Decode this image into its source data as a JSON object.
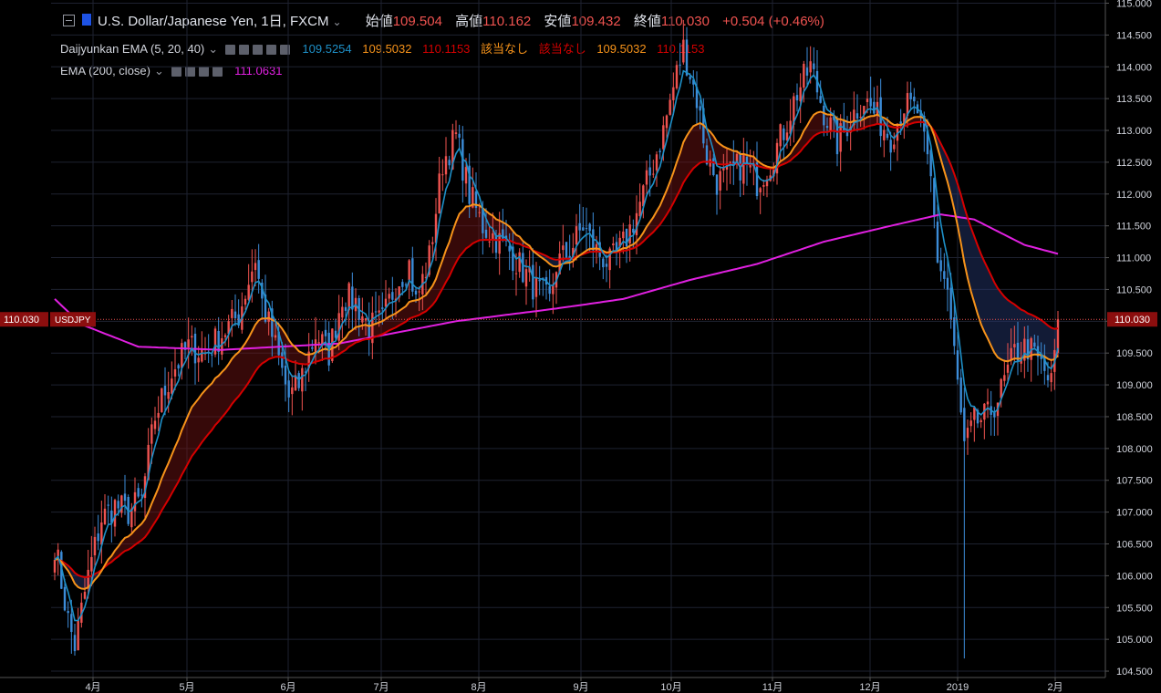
{
  "header": {
    "symbol": "U.S. Dollar/Japanese Yen, 1日, FXCM",
    "chevron": "⌄",
    "open_label": "始値",
    "open_value": "109.504",
    "high_label": "高値",
    "high_value": "110.162",
    "low_label": "安値",
    "low_value": "109.432",
    "close_label": "終値",
    "close_value": "110.030",
    "change": "+0.504 (+0.46%)"
  },
  "indicator1": {
    "name": "Daijyunkan EMA (5, 20, 40)",
    "v1": "109.5254",
    "v2": "109.5032",
    "v3": "110.1153",
    "v4": "該当なし",
    "v5": "該当なし",
    "v6": "109.5032",
    "v7": "110.1153"
  },
  "indicator2": {
    "name": "EMA (200, close)",
    "v1": "111.0631"
  },
  "price_label": {
    "value": "110.030",
    "symbol": "USDJPY"
  },
  "colors": {
    "up": "#ef5350",
    "down": "#3c8cd8",
    "ema5": "#1e90c8",
    "ema20": "#f7931a",
    "ema40": "#d50000",
    "ema200": "#e020e0",
    "grid": "#1e2230",
    "text": "#d1d4dc"
  },
  "chart_data": {
    "type": "line",
    "ylim": [
      104.4,
      115.05
    ],
    "y_ticks": [
      "115.000",
      "114.500",
      "114.000",
      "113.500",
      "113.000",
      "112.500",
      "112.000",
      "111.500",
      "111.000",
      "110.500",
      "110.000",
      "109.500",
      "109.000",
      "108.500",
      "108.000",
      "107.500",
      "107.000",
      "106.500",
      "106.000",
      "105.500",
      "105.000",
      "104.500"
    ],
    "x_ticks": [
      "4月",
      "5月",
      "6月",
      "7月",
      "8月",
      "9月",
      "10月",
      "11月",
      "12月",
      "2019",
      "2月"
    ],
    "close_anchors": [
      [
        0,
        106.5
      ],
      [
        4,
        105.3
      ],
      [
        6,
        104.9
      ],
      [
        10,
        106.0
      ],
      [
        14,
        106.9
      ],
      [
        18,
        107.1
      ],
      [
        22,
        107.0
      ],
      [
        26,
        107.2
      ],
      [
        30,
        108.5
      ],
      [
        35,
        109.2
      ],
      [
        40,
        109.6
      ],
      [
        45,
        109.5
      ],
      [
        50,
        109.8
      ],
      [
        55,
        110.1
      ],
      [
        60,
        111.0
      ],
      [
        62,
        110.3
      ],
      [
        66,
        109.6
      ],
      [
        70,
        108.8
      ],
      [
        73,
        109.0
      ],
      [
        78,
        109.8
      ],
      [
        82,
        109.5
      ],
      [
        86,
        110.4
      ],
      [
        90,
        110.3
      ],
      [
        94,
        109.9
      ],
      [
        98,
        110.0
      ],
      [
        102,
        110.6
      ],
      [
        106,
        110.9
      ],
      [
        108,
        110.3
      ],
      [
        112,
        111.0
      ],
      [
        116,
        112.5
      ],
      [
        120,
        112.9
      ],
      [
        124,
        112.0
      ],
      [
        128,
        111.5
      ],
      [
        132,
        111.3
      ],
      [
        136,
        111.1
      ],
      [
        140,
        110.8
      ],
      [
        144,
        110.5
      ],
      [
        148,
        110.3
      ],
      [
        150,
        110.9
      ],
      [
        154,
        111.1
      ],
      [
        158,
        111.5
      ],
      [
        162,
        111.1
      ],
      [
        166,
        110.9
      ],
      [
        170,
        111.2
      ],
      [
        174,
        111.7
      ],
      [
        178,
        112.3
      ],
      [
        182,
        113.0
      ],
      [
        186,
        113.9
      ],
      [
        188,
        114.3
      ],
      [
        192,
        113.5
      ],
      [
        195,
        112.6
      ],
      [
        198,
        112.2
      ],
      [
        202,
        112.3
      ],
      [
        206,
        112.5
      ],
      [
        210,
        112.2
      ],
      [
        214,
        112.5
      ],
      [
        218,
        113.0
      ],
      [
        222,
        113.6
      ],
      [
        226,
        114.0
      ],
      [
        230,
        113.3
      ],
      [
        234,
        112.8
      ],
      [
        238,
        113.2
      ],
      [
        242,
        113.5
      ],
      [
        246,
        113.2
      ],
      [
        250,
        112.9
      ],
      [
        254,
        113.4
      ],
      [
        258,
        113.3
      ],
      [
        262,
        112.2
      ],
      [
        264,
        111.0
      ],
      [
        267,
        110.5
      ],
      [
        270,
        109.0
      ],
      [
        272,
        108.0
      ],
      [
        275,
        108.4
      ],
      [
        279,
        108.5
      ],
      [
        283,
        108.9
      ],
      [
        287,
        109.5
      ],
      [
        291,
        109.6
      ],
      [
        295,
        109.3
      ],
      [
        298,
        109.0
      ],
      [
        300,
        110.03
      ]
    ],
    "ema200_anchors": [
      [
        0,
        110.35
      ],
      [
        8,
        109.95
      ],
      [
        25,
        109.6
      ],
      [
        50,
        109.55
      ],
      [
        85,
        109.65
      ],
      [
        120,
        110.0
      ],
      [
        150,
        110.2
      ],
      [
        170,
        110.35
      ],
      [
        190,
        110.65
      ],
      [
        210,
        110.9
      ],
      [
        230,
        111.25
      ],
      [
        250,
        111.5
      ],
      [
        265,
        111.68
      ],
      [
        275,
        111.6
      ],
      [
        290,
        111.2
      ],
      [
        300,
        111.06
      ]
    ],
    "series": [
      {
        "name": "EMA 5",
        "last": 109.5254
      },
      {
        "name": "EMA 20",
        "last": 109.5032
      },
      {
        "name": "EMA 40",
        "last": 110.1153
      },
      {
        "name": "EMA 200",
        "last": 111.0631
      }
    ]
  }
}
